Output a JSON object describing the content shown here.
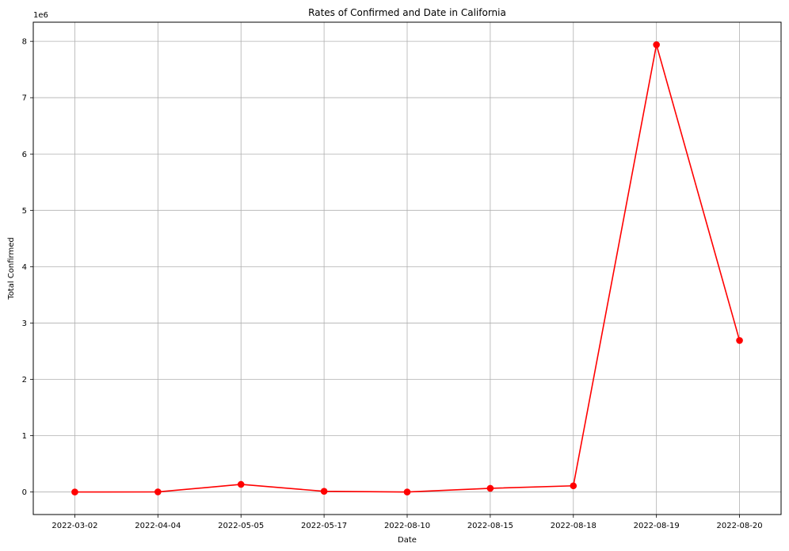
{
  "chart_data": {
    "type": "line",
    "title": "Rates of Confirmed and Date in California",
    "xlabel": "Date",
    "ylabel": "Total Confirmed",
    "y_offset_label": "1e6",
    "categories": [
      "2022-03-02",
      "2022-04-04",
      "2022-05-05",
      "2022-05-17",
      "2022-08-10",
      "2022-08-15",
      "2022-08-18",
      "2022-08-19",
      "2022-08-20"
    ],
    "values": [
      0,
      2000,
      135000,
      12000,
      0,
      65000,
      110000,
      7940000,
      2690000
    ],
    "yticks": [
      0,
      1000000,
      2000000,
      3000000,
      4000000,
      5000000,
      6000000,
      7000000,
      8000000
    ],
    "ytick_labels": [
      "0",
      "1",
      "2",
      "3",
      "4",
      "5",
      "6",
      "7",
      "8"
    ],
    "ylim": [
      -400000,
      8340000
    ],
    "grid": true,
    "line_color": "#ff0000",
    "marker": "circle"
  }
}
